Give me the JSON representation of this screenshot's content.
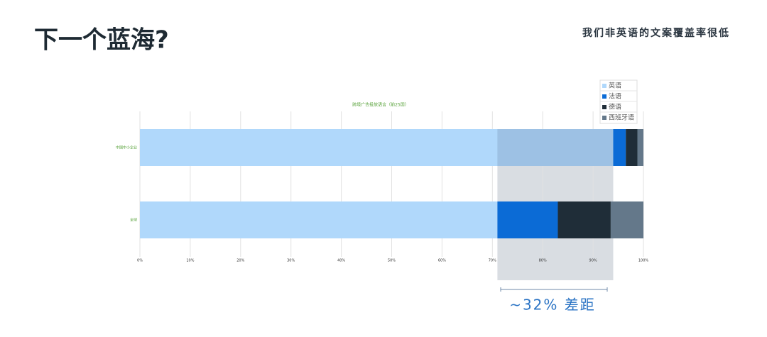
{
  "header": {
    "title": "下一个蓝海?",
    "subtitle": "我们非英语的文案覆盖率很低"
  },
  "chart_data": {
    "type": "stacked_barh",
    "title": "跨境广告投放语言（前25国）",
    "categories": [
      "中国中小企业",
      "全球"
    ],
    "series": [
      {
        "name": "英语",
        "color": "#b0d8fb",
        "values": [
          94,
          71
        ]
      },
      {
        "name": "法语",
        "color": "#0b6bd6",
        "values": [
          2.5,
          12
        ]
      },
      {
        "name": "德语",
        "color": "#1f2d38",
        "values": [
          2.3,
          10.5
        ]
      },
      {
        "name": "西班牙语",
        "color": "#64788a",
        "values": [
          1.2,
          6.5
        ]
      }
    ],
    "xlim": [
      0,
      100
    ],
    "xticks": [
      {
        "value": 0,
        "label": "0%"
      },
      {
        "value": 10,
        "label": "10%"
      },
      {
        "value": 20,
        "label": "20%"
      },
      {
        "value": 30,
        "label": "30%"
      },
      {
        "value": 40,
        "label": "40%"
      },
      {
        "value": 50,
        "label": "50%"
      },
      {
        "value": 60,
        "label": "60%"
      },
      {
        "value": 70,
        "label": "70%"
      },
      {
        "value": 80,
        "label": "80%"
      },
      {
        "value": 90,
        "label": "90%"
      },
      {
        "value": 100,
        "label": "100%"
      }
    ],
    "grid": true,
    "legend": "top-right",
    "annotation": "~32% 差距"
  }
}
